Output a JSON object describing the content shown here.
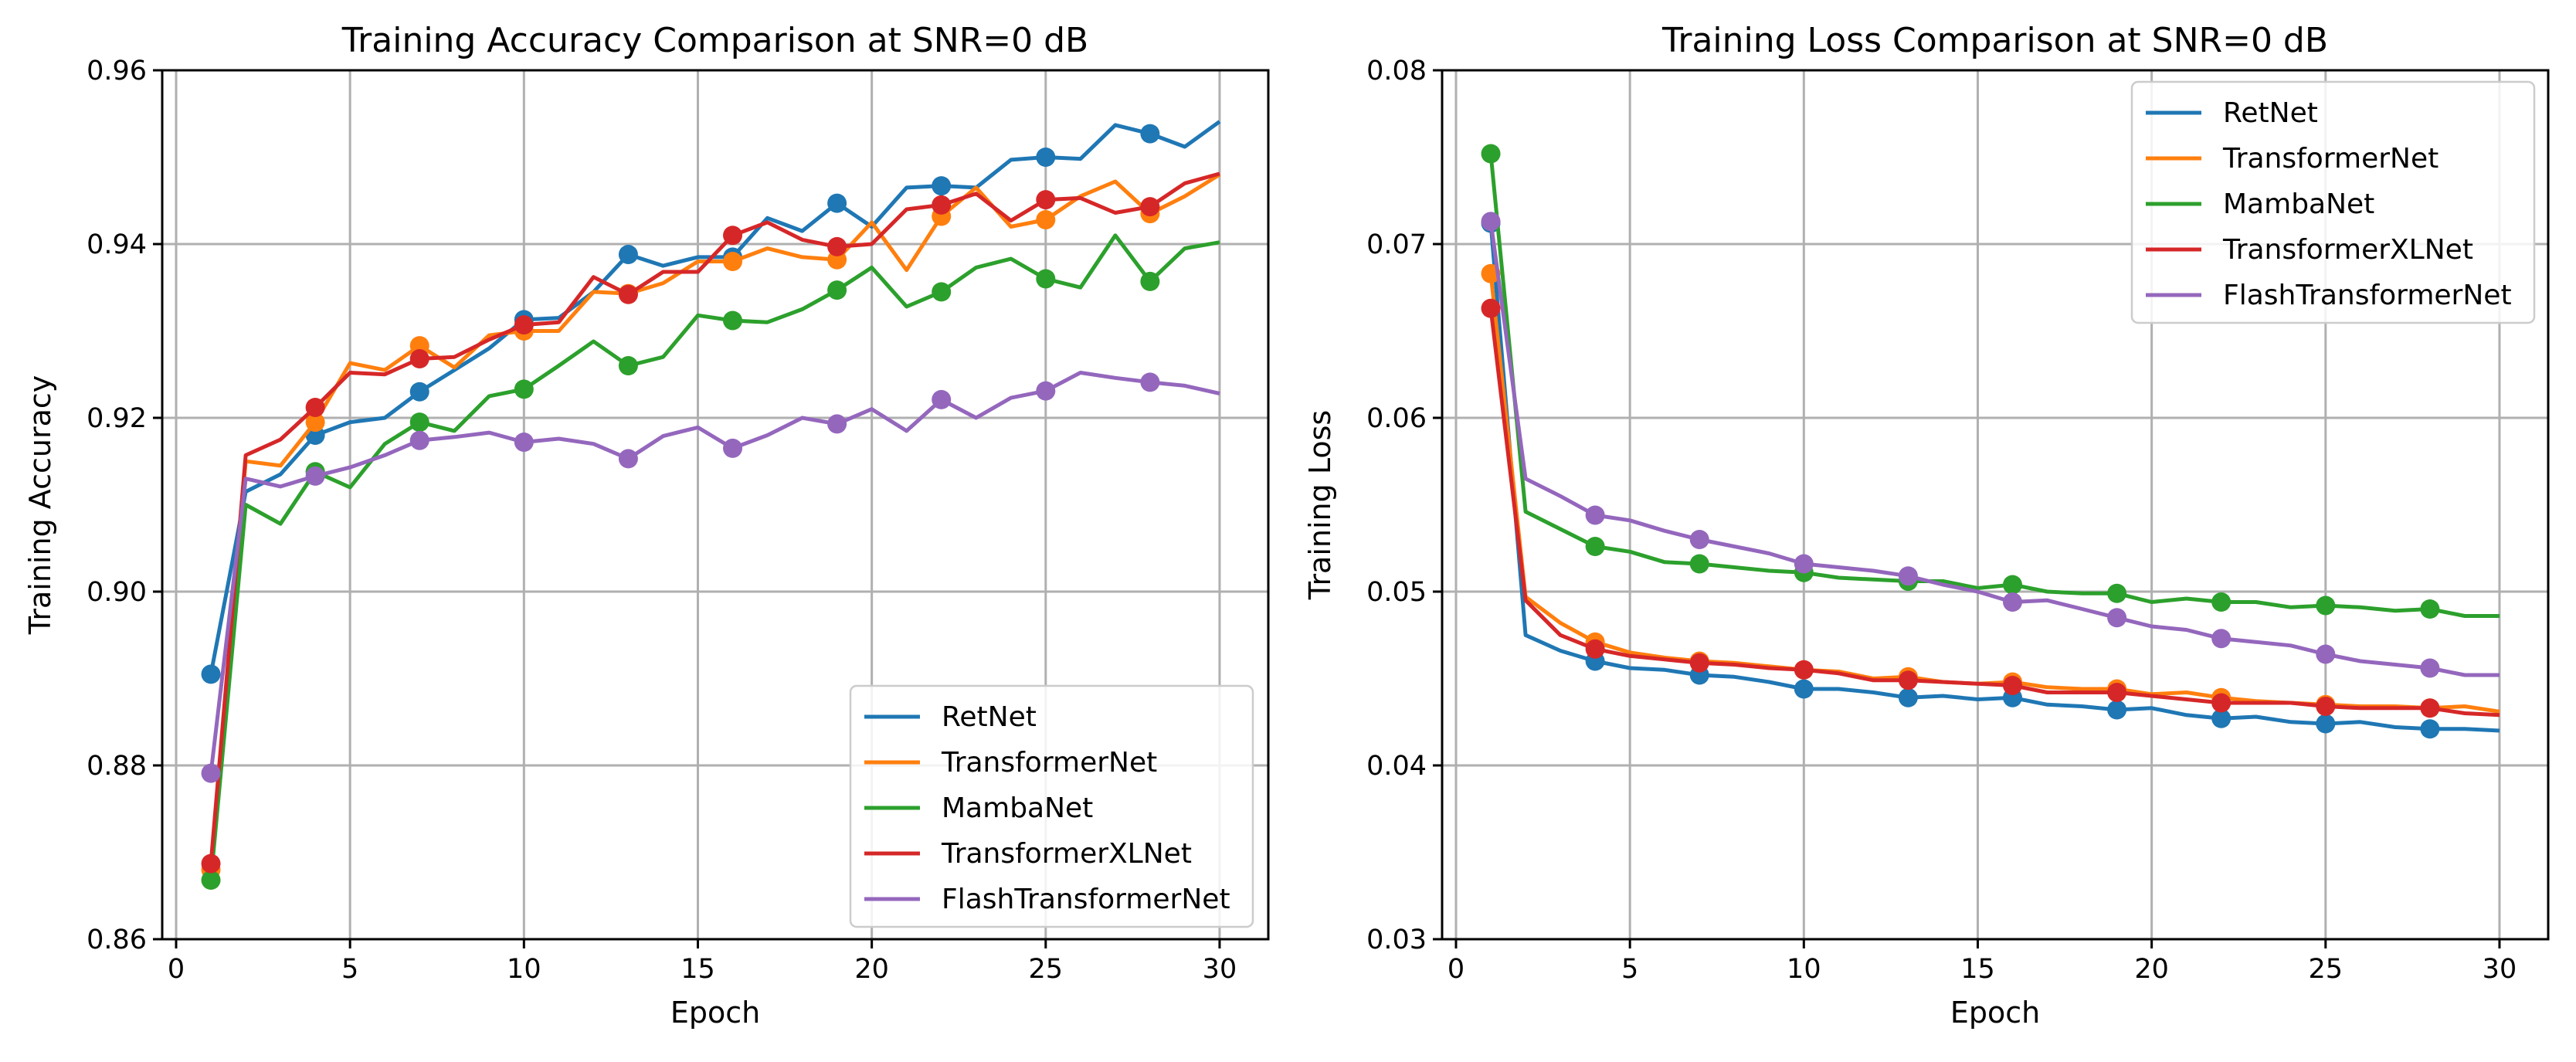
{
  "chart_data": [
    {
      "type": "line",
      "title": "Training Accuracy Comparison at SNR=0 dB",
      "xlabel": "Epoch",
      "ylabel": "Training Accuracy",
      "xlim": [
        -0.4,
        31.4
      ],
      "ylim": [
        0.86,
        0.96
      ],
      "xticks": [
        0,
        5,
        10,
        15,
        20,
        25,
        30
      ],
      "xtick_labels": [
        "0",
        "5",
        "10",
        "15",
        "20",
        "25",
        "30"
      ],
      "yticks": [
        0.86,
        0.88,
        0.9,
        0.92,
        0.94,
        0.96
      ],
      "ytick_labels": [
        "0.86",
        "0.88",
        "0.90",
        "0.92",
        "0.94",
        "0.96"
      ],
      "grid": true,
      "legend_position": "lower-right",
      "marker_every": 3,
      "x": [
        1,
        2,
        3,
        4,
        5,
        6,
        7,
        8,
        9,
        10,
        11,
        12,
        13,
        14,
        15,
        16,
        17,
        18,
        19,
        20,
        21,
        22,
        23,
        24,
        25,
        26,
        27,
        28,
        29,
        30
      ],
      "series": [
        {
          "name": "RetNet",
          "color": "#1f77b4",
          "values": [
            0.8905,
            0.9115,
            0.9135,
            0.918,
            0.9195,
            0.92,
            0.923,
            0.9255,
            0.928,
            0.9313,
            0.9315,
            0.9345,
            0.9388,
            0.9375,
            0.9385,
            0.9385,
            0.943,
            0.9415,
            0.9447,
            0.942,
            0.9465,
            0.9467,
            0.9465,
            0.9497,
            0.95,
            0.9498,
            0.9537,
            0.9527,
            0.9512,
            0.9541
          ]
        },
        {
          "name": "TransformerNet",
          "color": "#ff7f0e",
          "values": [
            0.868,
            0.915,
            0.9145,
            0.9195,
            0.9263,
            0.9255,
            0.9283,
            0.9258,
            0.9295,
            0.93,
            0.93,
            0.9345,
            0.9343,
            0.9355,
            0.938,
            0.938,
            0.9395,
            0.9385,
            0.9382,
            0.9425,
            0.937,
            0.9432,
            0.9465,
            0.942,
            0.9428,
            0.9455,
            0.9472,
            0.9435,
            0.9455,
            0.948
          ]
        },
        {
          "name": "MambaNet",
          "color": "#2ca02c",
          "values": [
            0.8668,
            0.91,
            0.9078,
            0.9138,
            0.912,
            0.917,
            0.9195,
            0.9185,
            0.9225,
            0.9233,
            0.926,
            0.9288,
            0.926,
            0.927,
            0.9318,
            0.9312,
            0.931,
            0.9325,
            0.9347,
            0.9373,
            0.9328,
            0.9345,
            0.9373,
            0.9383,
            0.936,
            0.935,
            0.941,
            0.9357,
            0.9395,
            0.9402
          ]
        },
        {
          "name": "TransformerXLNet",
          "color": "#d62728",
          "values": [
            0.8687,
            0.9157,
            0.9175,
            0.9212,
            0.9252,
            0.925,
            0.9268,
            0.927,
            0.929,
            0.9307,
            0.931,
            0.9362,
            0.9342,
            0.9368,
            0.9368,
            0.941,
            0.9425,
            0.9405,
            0.9397,
            0.94,
            0.944,
            0.9445,
            0.9458,
            0.9427,
            0.9451,
            0.9453,
            0.9436,
            0.9443,
            0.947,
            0.9481
          ]
        },
        {
          "name": "FlashTransformerNet",
          "color": "#9467bd",
          "values": [
            0.8791,
            0.913,
            0.9121,
            0.9133,
            0.9143,
            0.9157,
            0.9174,
            0.9178,
            0.9183,
            0.9172,
            0.9176,
            0.917,
            0.9153,
            0.9179,
            0.9189,
            0.9165,
            0.918,
            0.92,
            0.9193,
            0.921,
            0.9185,
            0.9221,
            0.92,
            0.9223,
            0.9231,
            0.9252,
            0.9246,
            0.9241,
            0.9237,
            0.9228
          ]
        }
      ]
    },
    {
      "type": "line",
      "title": "Training Loss Comparison at SNR=0 dB",
      "xlabel": "Epoch",
      "ylabel": "Training Loss",
      "xlim": [
        -0.4,
        31.4
      ],
      "ylim": [
        0.03,
        0.08
      ],
      "xticks": [
        0,
        5,
        10,
        15,
        20,
        25,
        30
      ],
      "xtick_labels": [
        "0",
        "5",
        "10",
        "15",
        "20",
        "25",
        "30"
      ],
      "yticks": [
        0.03,
        0.04,
        0.05,
        0.06,
        0.07,
        0.08
      ],
      "ytick_labels": [
        "0.03",
        "0.04",
        "0.05",
        "0.06",
        "0.07",
        "0.08"
      ],
      "grid": true,
      "legend_position": "upper-right",
      "marker_every": 3,
      "x": [
        1,
        2,
        3,
        4,
        5,
        6,
        7,
        8,
        9,
        10,
        11,
        12,
        13,
        14,
        15,
        16,
        17,
        18,
        19,
        20,
        21,
        22,
        23,
        24,
        25,
        26,
        27,
        28,
        29,
        30
      ],
      "series": [
        {
          "name": "RetNet",
          "color": "#1f77b4",
          "values": [
            0.0712,
            0.0475,
            0.0466,
            0.046,
            0.0456,
            0.0455,
            0.0452,
            0.0451,
            0.0448,
            0.0444,
            0.0444,
            0.0442,
            0.0439,
            0.044,
            0.0438,
            0.0439,
            0.0435,
            0.0434,
            0.0432,
            0.0433,
            0.0429,
            0.0427,
            0.0428,
            0.0425,
            0.0424,
            0.0425,
            0.0422,
            0.0421,
            0.0421,
            0.042
          ]
        },
        {
          "name": "TransformerNet",
          "color": "#ff7f0e",
          "values": [
            0.0683,
            0.0497,
            0.0482,
            0.0471,
            0.0465,
            0.0462,
            0.046,
            0.0459,
            0.0457,
            0.0455,
            0.0454,
            0.045,
            0.0451,
            0.0448,
            0.0447,
            0.0448,
            0.0445,
            0.0444,
            0.0444,
            0.0441,
            0.0442,
            0.0439,
            0.0437,
            0.0436,
            0.0435,
            0.0434,
            0.0434,
            0.0433,
            0.0434,
            0.0431
          ]
        },
        {
          "name": "MambaNet",
          "color": "#2ca02c",
          "values": [
            0.0752,
            0.0546,
            0.0536,
            0.0526,
            0.0523,
            0.0517,
            0.0516,
            0.0514,
            0.0512,
            0.0511,
            0.0508,
            0.0507,
            0.0506,
            0.0506,
            0.0502,
            0.0504,
            0.05,
            0.0499,
            0.0499,
            0.0494,
            0.0496,
            0.0494,
            0.0494,
            0.0491,
            0.0492,
            0.0491,
            0.0489,
            0.049,
            0.0486,
            0.0486
          ]
        },
        {
          "name": "TransformerXLNet",
          "color": "#d62728",
          "values": [
            0.0663,
            0.0495,
            0.0475,
            0.0467,
            0.0463,
            0.0461,
            0.0459,
            0.0458,
            0.0456,
            0.0455,
            0.0453,
            0.0449,
            0.0449,
            0.0448,
            0.0447,
            0.0446,
            0.0442,
            0.0442,
            0.0442,
            0.044,
            0.0438,
            0.0436,
            0.0436,
            0.0436,
            0.0434,
            0.0433,
            0.0433,
            0.0433,
            0.043,
            0.0429
          ]
        },
        {
          "name": "FlashTransformerNet",
          "color": "#9467bd",
          "values": [
            0.0713,
            0.0565,
            0.0555,
            0.0544,
            0.0541,
            0.0535,
            0.053,
            0.0526,
            0.0522,
            0.0516,
            0.0514,
            0.0512,
            0.0509,
            0.0504,
            0.05,
            0.0494,
            0.0495,
            0.049,
            0.0485,
            0.048,
            0.0478,
            0.0473,
            0.0471,
            0.0469,
            0.0464,
            0.046,
            0.0458,
            0.0456,
            0.0452,
            0.0452
          ]
        }
      ]
    }
  ]
}
